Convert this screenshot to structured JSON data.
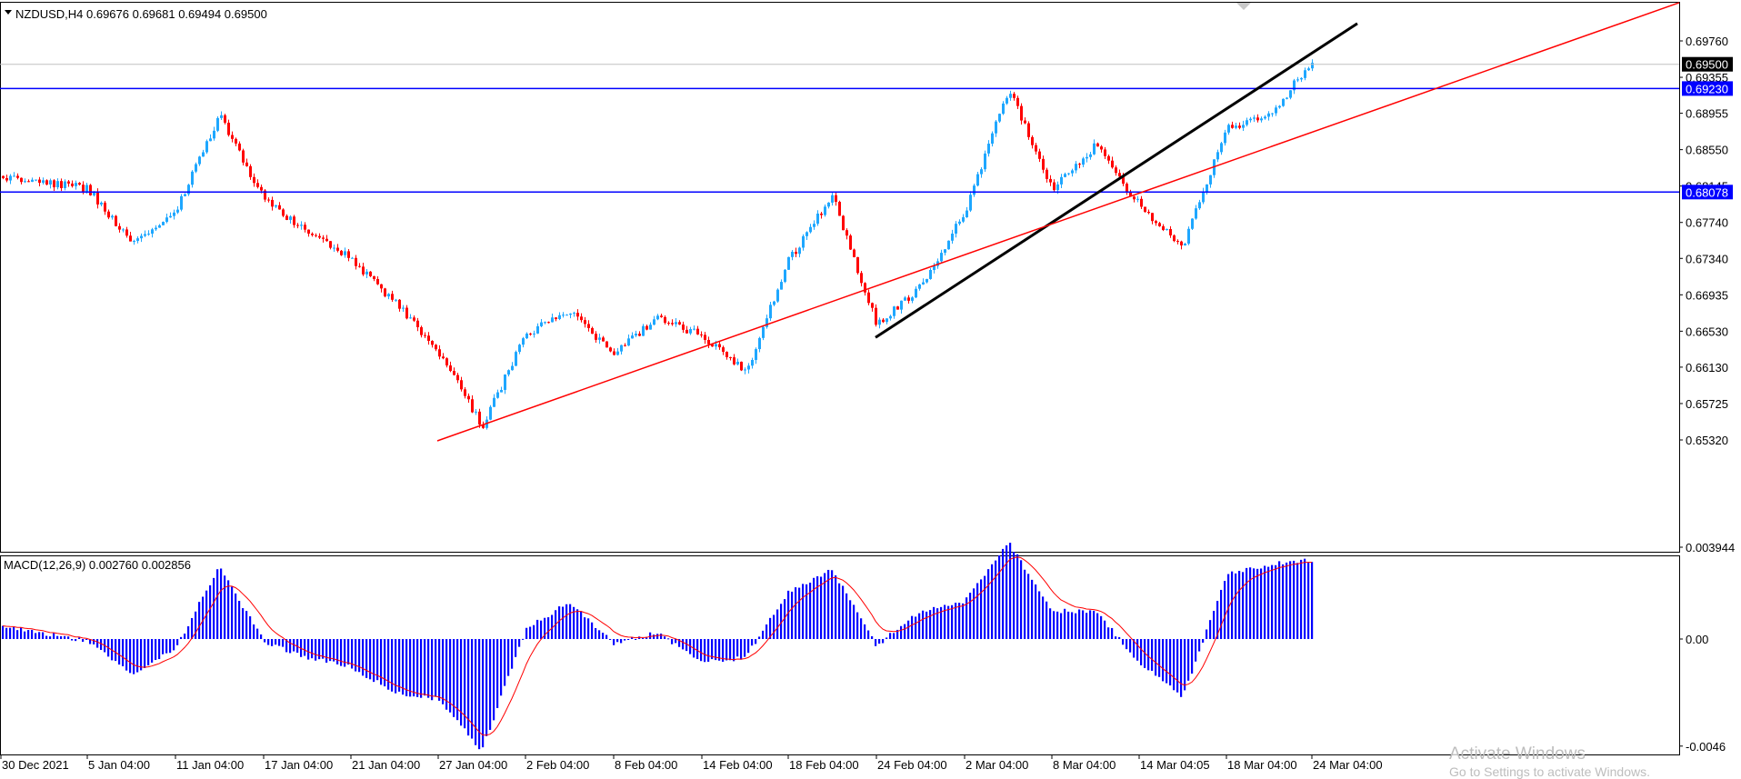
{
  "symbol_header": {
    "symbol": "NZDUSD,H4",
    "ohlc": "0.69676 0.69681 0.69494 0.69500"
  },
  "macd_header": {
    "label": "MACD(12,26,9) 0.002760 0.002856"
  },
  "price_levels": [
    {
      "value": "0.69500",
      "role": "current-price",
      "color": "#000000"
    },
    {
      "value": "0.69230",
      "role": "horizontal-line",
      "color": "#0000ff"
    },
    {
      "value": "0.68078",
      "role": "horizontal-line",
      "color": "#0000ff"
    }
  ],
  "watermark": {
    "line1": "Activate Windows",
    "line2": "Go to Settings to activate Windows."
  },
  "colors": {
    "bull": "#1ea7ff",
    "bear": "#ff0000",
    "macd_hist": "#0000ff",
    "signal": "#ff0000",
    "hline": "#0000ff",
    "trend_black": "#000000",
    "trend_red": "#ff0000"
  },
  "chart_data": [
    {
      "type": "candlestick",
      "title": "NZDUSD,H4",
      "y_ticks": [
        "0.69760",
        "0.69355",
        "0.68955",
        "0.68550",
        "0.68145",
        "0.67740",
        "0.67340",
        "0.66935",
        "0.66530",
        "0.66130",
        "0.65725",
        "0.65320"
      ],
      "x_ticks": [
        "30 Dec 2021",
        "5 Jan 04:00",
        "11 Jan 04:00",
        "17 Jan 04:00",
        "21 Jan 04:00",
        "27 Jan 04:00",
        "2 Feb 04:00",
        "8 Feb 04:00",
        "14 Feb 04:00",
        "18 Feb 04:00",
        "24 Feb 04:00",
        "2 Mar 04:00",
        "8 Mar 04:00",
        "14 Mar 04:05",
        "18 Mar 04:00",
        "24 Mar 04:00"
      ],
      "ylim": [
        0.6521,
        0.6998
      ],
      "grid": false,
      "horizontal_lines": [
        0.6923,
        0.68078
      ],
      "current_price": 0.695,
      "trendlines": [
        {
          "color": "black",
          "from": [
            "24 Feb 04:00",
            0.6646
          ],
          "to": [
            "24 Mar 04:00",
            0.6996
          ]
        },
        {
          "color": "red",
          "from": [
            "27 Jan 04:00",
            0.6531
          ],
          "to": [
            "24 Mar 04:00",
            0.6874
          ]
        }
      ],
      "close_path": [
        [
          "30 Dec 2021",
          0.6826
        ],
        [
          "5 Jan 04:00",
          0.6812
        ],
        [
          "5 Jan 04:00",
          0.6752
        ],
        [
          "11 Jan 04:00",
          0.6787
        ],
        [
          "11 Jan 04:00",
          0.6893
        ],
        [
          "17 Jan 04:00",
          0.68
        ],
        [
          "17 Jan 04:00",
          0.6764
        ],
        [
          "21 Jan 04:00",
          0.6733
        ],
        [
          "21 Jan 04:00",
          0.6685
        ],
        [
          "27 Jan 04:00",
          0.6631
        ],
        [
          "27 Jan 04:00",
          0.6547
        ],
        [
          "2 Feb 04:00",
          0.665
        ],
        [
          "2 Feb 04:00",
          0.6675
        ],
        [
          "8 Feb 04:00",
          0.6628
        ],
        [
          "8 Feb 04:00",
          0.6668
        ],
        [
          "14 Feb 04:00",
          0.6648
        ],
        [
          "14 Feb 04:00",
          0.6607
        ],
        [
          "18 Feb 04:00",
          0.6731
        ],
        [
          "18 Feb 04:00",
          0.6805
        ],
        [
          "24 Feb 04:00",
          0.666
        ],
        [
          "24 Feb 04:00",
          0.6702
        ],
        [
          "2 Mar 04:00",
          0.6786
        ],
        [
          "2 Mar 04:00",
          0.6922
        ],
        [
          "8 Mar 04:00",
          0.6812
        ],
        [
          "8 Mar 04:00",
          0.686
        ],
        [
          "14 Mar 04:05",
          0.6793
        ],
        [
          "14 Mar 04:05",
          0.6747
        ],
        [
          "18 Mar 04:00",
          0.688
        ],
        [
          "18 Mar 04:00",
          0.6892
        ],
        [
          "24 Mar 04:00",
          0.6955
        ]
      ]
    },
    {
      "type": "bar",
      "title": "MACD(12,26,9) 0.002760 0.002856",
      "y_ticks": [
        "0.003944",
        "0.00",
        "-0.0046"
      ],
      "ylim": [
        -0.0046,
        0.003944
      ],
      "histogram_path": [
        [
          "30 Dec 2021",
          0.0006
        ],
        [
          "5 Jan 04:00",
          -0.0001
        ],
        [
          "5 Jan 04:00",
          -0.0015
        ],
        [
          "11 Jan 04:00",
          -0.0004
        ],
        [
          "11 Jan 04:00",
          0.0031
        ],
        [
          "17 Jan 04:00",
          -0.0001
        ],
        [
          "17 Jan 04:00",
          -0.0008
        ],
        [
          "21 Jan 04:00",
          -0.0012
        ],
        [
          "21 Jan 04:00",
          -0.0023
        ],
        [
          "27 Jan 04:00",
          -0.0026
        ],
        [
          "27 Jan 04:00",
          -0.0048
        ],
        [
          "2 Feb 04:00",
          0.0004
        ],
        [
          "2 Feb 04:00",
          0.0016
        ],
        [
          "8 Feb 04:00",
          -0.0002
        ],
        [
          "8 Feb 04:00",
          0.0003
        ],
        [
          "14 Feb 04:00",
          -0.001
        ],
        [
          "14 Feb 04:00",
          -0.0008
        ],
        [
          "18 Feb 04:00",
          0.002
        ],
        [
          "18 Feb 04:00",
          0.003
        ],
        [
          "24 Feb 04:00",
          -0.0003
        ],
        [
          "24 Feb 04:00",
          0.0012
        ],
        [
          "2 Mar 04:00",
          0.0016
        ],
        [
          "2 Mar 04:00",
          0.0042
        ],
        [
          "8 Mar 04:00",
          0.0012
        ],
        [
          "8 Mar 04:00",
          0.0012
        ],
        [
          "14 Mar 04:05",
          -0.001
        ],
        [
          "14 Mar 04:05",
          -0.0025
        ],
        [
          "18 Mar 04:00",
          0.0028
        ],
        [
          "18 Mar 04:00",
          0.0032
        ],
        [
          "24 Mar 04:00",
          0.0034
        ]
      ],
      "signal_color": "red",
      "histogram_color": "blue"
    }
  ]
}
